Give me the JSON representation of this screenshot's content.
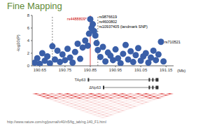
{
  "chart_data": {
    "type": "scatter",
    "title": "Fine Mapping",
    "x_label": "(Mb)",
    "y_label": "-log10(P)",
    "x": [
      190.63,
      190.64,
      190.65,
      190.66,
      190.67,
      190.68,
      190.69,
      190.7,
      190.71,
      190.72,
      190.73,
      190.74,
      190.75,
      190.76,
      190.77,
      190.78,
      190.79,
      190.8,
      190.81,
      190.82,
      190.83,
      190.84,
      190.845,
      190.85,
      190.855,
      190.86,
      190.865,
      190.87,
      190.875,
      190.88,
      190.89,
      190.9,
      190.91,
      190.92,
      190.93,
      190.94,
      190.95,
      190.96,
      190.97,
      190.98,
      190.99,
      191.0,
      191.01,
      191.02,
      191.03,
      191.04,
      191.05,
      191.06,
      191.07,
      191.08,
      191.09,
      191.1,
      191.11,
      191.12,
      191.13,
      191.14
    ],
    "values": [
      0.5,
      1.2,
      0.3,
      2.0,
      0.8,
      1.5,
      0.4,
      3.1,
      1.0,
      2.4,
      0.6,
      1.8,
      0.9,
      2.7,
      1.3,
      0.5,
      2.2,
      3.5,
      1.1,
      2.9,
      4.0,
      3.2,
      5.1,
      7.4,
      6.0,
      6.6,
      5.5,
      4.8,
      3.6,
      2.5,
      1.4,
      3.0,
      0.7,
      2.1,
      1.6,
      0.9,
      2.6,
      1.2,
      0.4,
      1.9,
      3.3,
      1.0,
      2.3,
      0.6,
      1.7,
      2.8,
      0.8,
      1.5,
      2.0,
      0.5,
      1.3,
      2.4,
      0.9,
      1.8,
      3.8,
      0.7
    ],
    "color": "#3a5fa8",
    "marker": "circle",
    "xlim": [
      190.62,
      191.18
    ],
    "xticks": [
      190.65,
      190.75,
      190.85,
      190.95,
      191.05,
      191.15
    ],
    "ylim": [
      0,
      8
    ],
    "yticks": [
      0,
      2,
      4,
      6,
      8
    ],
    "grid": false,
    "boundaries": [
      190.7,
      190.88
    ],
    "lead_x": 190.85,
    "annotations": [
      {
        "text": "rs4488809*",
        "x": 190.85,
        "y": 7.4,
        "color": "#cc0000"
      },
      {
        "text": "rs9876619",
        "x": 190.87,
        "y": 7.8,
        "color": "#000000"
      },
      {
        "text": "rs4600802",
        "x": 190.87,
        "y": 7.0,
        "color": "#000000"
      },
      {
        "text": "rs10937405 (landmark SNP)",
        "x": 190.87,
        "y": 6.2,
        "color": "#000000"
      },
      {
        "text": "rs710521",
        "x": 191.13,
        "y": 3.8,
        "color": "#000000"
      }
    ],
    "genes": [
      {
        "name": "TAp63",
        "start": 190.84,
        "end": 191.12
      },
      {
        "name": "ΔNp63",
        "start": 190.9,
        "end": 191.12
      }
    ],
    "source": "http://www.nature.com/ng/journal/v40/n5/fig_tab/ng.140_F1.html"
  }
}
